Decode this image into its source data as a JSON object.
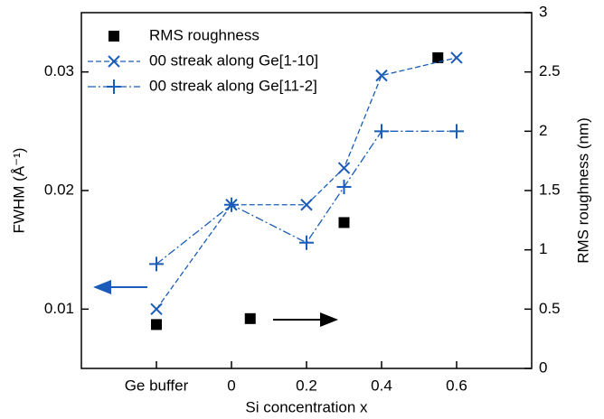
{
  "chart_data": {
    "type": "line",
    "x_label": "Si concentration x",
    "y_label": "FWHM (Å⁻¹)",
    "y2_label": "RMS roughness (nm)",
    "xlim": [
      -0.4,
      0.8
    ],
    "xticks": [
      {
        "value": -0.2,
        "label": "Ge buffer"
      },
      0,
      0.2,
      0.4,
      0.6
    ],
    "ylim": [
      0.005,
      0.035
    ],
    "yticks": [
      0.01,
      0.02,
      0.03
    ],
    "y2lim": [
      0,
      3
    ],
    "y2ticks": [
      0,
      0.5,
      1,
      1.5,
      2,
      2.5,
      3
    ],
    "legend": "upper left",
    "series": [
      {
        "name": "RMS roughness",
        "color": "#000000",
        "marker": "square",
        "line": "none",
        "axis": "y2",
        "x": [
          -0.2,
          0.05,
          0.3,
          0.55
        ],
        "values": [
          0.37,
          0.42,
          1.23,
          2.62
        ]
      },
      {
        "name": "00 streak along Ge[1-10]",
        "color": "#1a5cb8",
        "marker": "x",
        "line": "dashed",
        "x": [
          -0.2,
          0,
          0.2,
          0.3,
          0.4,
          0.6
        ],
        "values": [
          0.01,
          0.0188,
          0.0188,
          0.0219,
          0.0297,
          0.0312
        ]
      },
      {
        "name": "00 streak along Ge[11-2]",
        "color": "#1a5cb8",
        "marker": "plus",
        "line": "dashdot",
        "x": [
          -0.2,
          0,
          0.2,
          0.3,
          0.4,
          0.6
        ],
        "values": [
          0.0138,
          0.0188,
          0.0156,
          0.0203,
          0.025,
          0.025
        ]
      }
    ]
  }
}
